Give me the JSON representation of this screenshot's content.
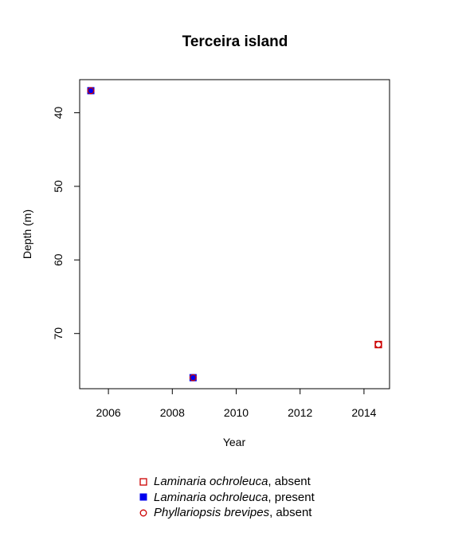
{
  "chart_data": {
    "type": "scatter",
    "title": "Terceira island",
    "xlabel": "Year",
    "ylabel": "Depth (m)",
    "xlim": [
      2005.1,
      2014.8
    ],
    "ylim": [
      77.5,
      35.5
    ],
    "y_reversed": true,
    "x_ticks": [
      "2006",
      "2008",
      "2010",
      "2012",
      "2014"
    ],
    "x_tick_values": [
      2006,
      2008,
      2010,
      2012,
      2014
    ],
    "y_ticks": [
      "40",
      "50",
      "60",
      "70"
    ],
    "y_tick_values": [
      40,
      50,
      60,
      70
    ],
    "grid": false,
    "legend_position": "bottom",
    "series": [
      {
        "key": "lo_absent",
        "species": "Laminaria ochroleuca",
        "status": ", absent",
        "marker": "open-square",
        "color": "#cc0000",
        "points": [
          {
            "x": 2014.45,
            "y": 71.5
          }
        ]
      },
      {
        "key": "lo_present",
        "species": "Laminaria ochroleuca",
        "status": ", present",
        "marker": "filled-square",
        "color": "#0000ee",
        "points": [
          {
            "x": 2005.45,
            "y": 37
          },
          {
            "x": 2008.65,
            "y": 76
          }
        ]
      },
      {
        "key": "pb_absent",
        "species": "Phyllariopsis brevipes",
        "status": ", absent",
        "marker": "open-circle",
        "color": "#cc0000",
        "points": [
          {
            "x": 2005.45,
            "y": 37
          },
          {
            "x": 2008.65,
            "y": 76
          },
          {
            "x": 2014.45,
            "y": 71.5
          }
        ]
      }
    ]
  }
}
